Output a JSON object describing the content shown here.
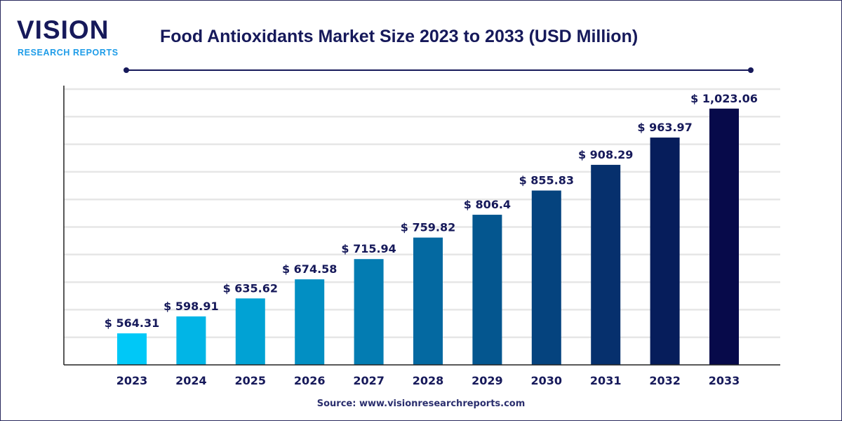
{
  "logo": {
    "main": "VISION",
    "sub": "RESEARCH REPORTS"
  },
  "source": "Source: www.visionresearchreports.com",
  "colors": {
    "title": "#16195a",
    "bar_start": "#00c8f7",
    "bar_end": "#070a4a",
    "grid": "#e6e6e6"
  },
  "chart_data": {
    "type": "bar",
    "title": "Food Antioxidants Market Size 2023 to 2033 (USD Million)",
    "xlabel": "",
    "ylabel": "",
    "categories": [
      "2023",
      "2024",
      "2025",
      "2026",
      "2027",
      "2028",
      "2029",
      "2030",
      "2031",
      "2032",
      "2033"
    ],
    "values": [
      564.31,
      598.91,
      635.62,
      674.58,
      715.94,
      759.82,
      806.4,
      855.83,
      908.29,
      963.97,
      1023.06
    ],
    "data_labels": [
      "$ 564.31",
      "$ 598.91",
      "$ 635.62",
      "$ 674.58",
      "$ 715.94",
      "$ 759.82",
      "$ 806.4",
      "$ 855.83",
      "$ 908.29",
      "$ 963.97",
      "$ 1,023.06"
    ],
    "ylim": [
      500,
      1070
    ],
    "grid": true,
    "legend": "none"
  }
}
